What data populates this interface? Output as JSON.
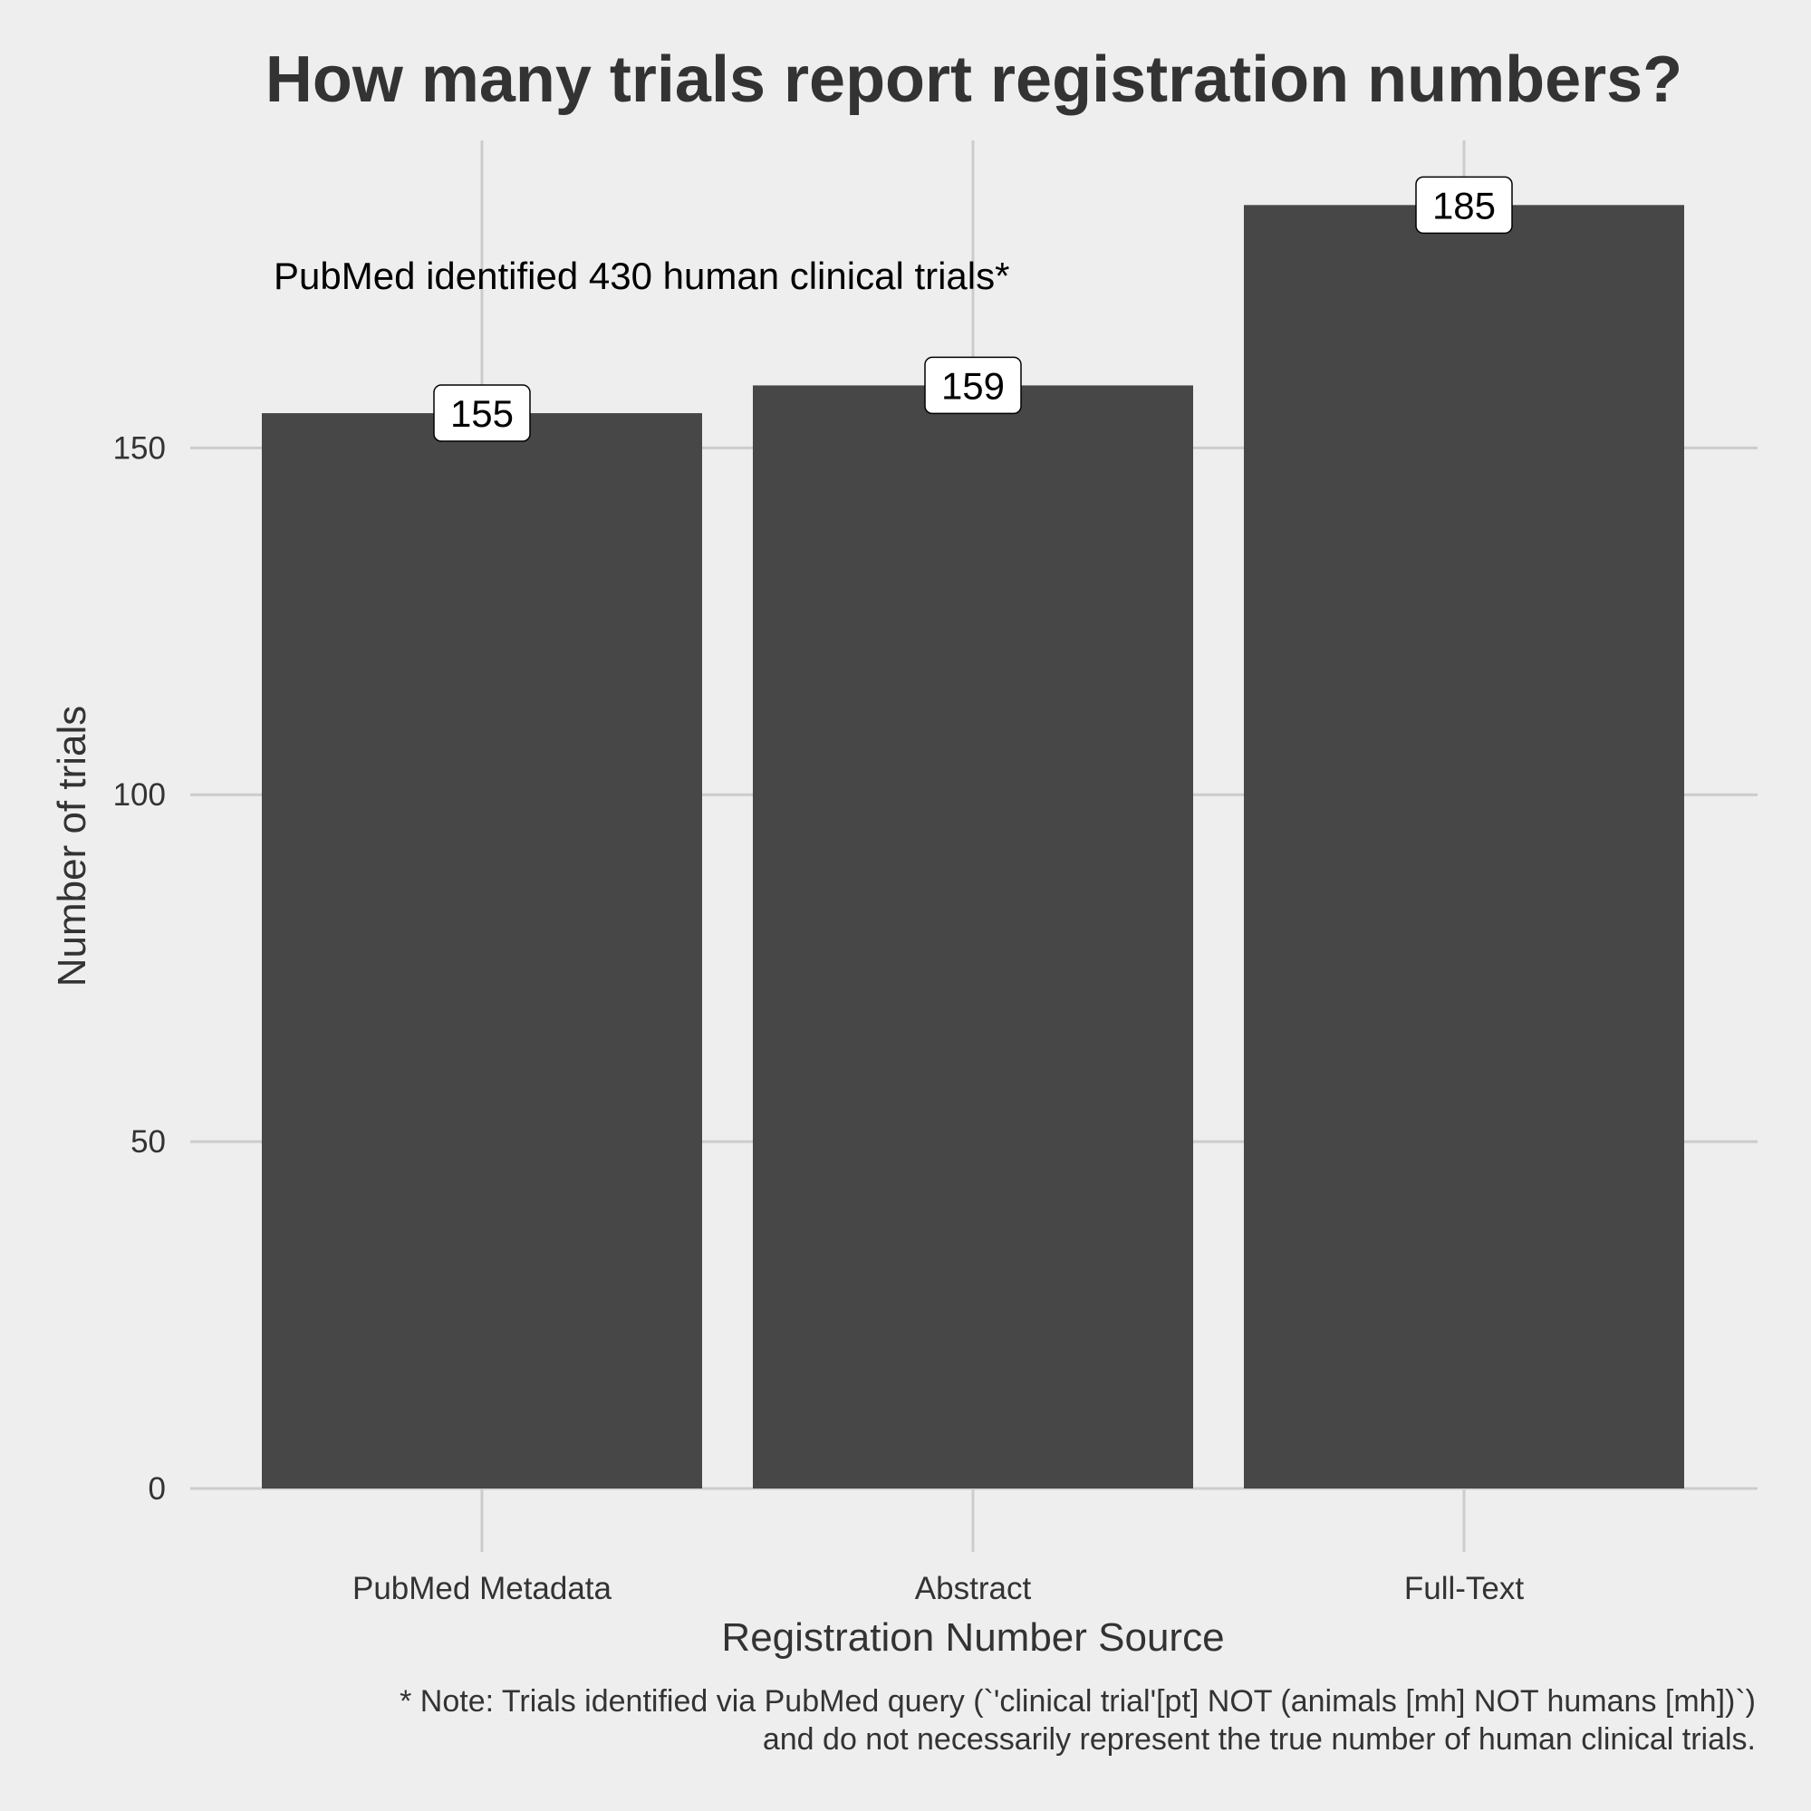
{
  "chart_data": {
    "type": "bar",
    "title": "How many trials report registration numbers?",
    "xlabel": "Registration Number Source",
    "ylabel": "Number of trials",
    "categories": [
      "PubMed Metadata",
      "Abstract",
      "Full-Text"
    ],
    "values": [
      155,
      159,
      185
    ],
    "data_labels": [
      "155",
      "159",
      "185"
    ],
    "ylim": [
      0,
      190
    ],
    "yticks": [
      0,
      50,
      100,
      150
    ],
    "ytick_labels": [
      "0",
      "50",
      "100",
      "150"
    ],
    "grid": true,
    "legend": "none",
    "annotation": "PubMed identified 430 human clinical trials*",
    "caption": [
      "* Note: Trials identified via PubMed query (`'clinical trial'[pt] NOT (animals [mh] NOT humans [mh])`)",
      "and do not necessarily represent the true number of human clinical trials."
    ],
    "colors": {
      "background": "#eeeeee",
      "bar": "#474747",
      "grid": "#cccccc",
      "text": "#333333"
    }
  }
}
